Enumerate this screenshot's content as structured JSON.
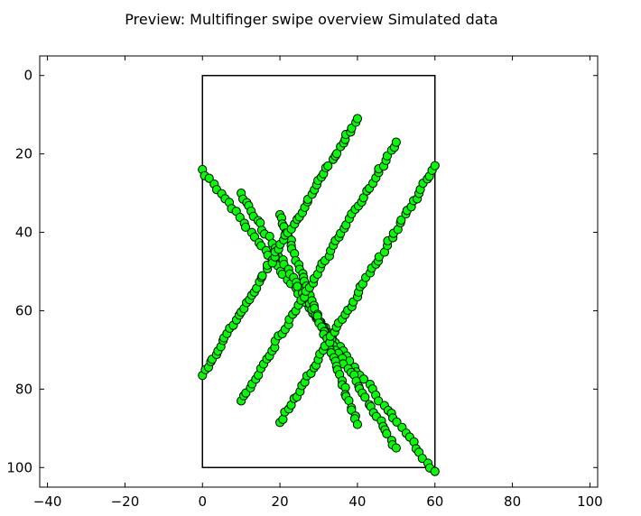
{
  "chart_data": {
    "type": "scatter",
    "title": "Preview: Multifinger swipe overview Simulated data",
    "xlabel": "",
    "ylabel": "",
    "xlim": [
      -42,
      102
    ],
    "ylim": [
      105,
      -5
    ],
    "y_inverted": true,
    "grid": false,
    "legend": "none",
    "x_ticks": [
      -40,
      -20,
      0,
      20,
      40,
      60,
      80,
      100
    ],
    "y_ticks": [
      0,
      20,
      40,
      60,
      80,
      100
    ],
    "marker_color": "#00ff00",
    "marker_edge_color": "#000000",
    "boundary_rectangle": {
      "x": [
        0,
        60
      ],
      "y": [
        0,
        100
      ]
    },
    "swipes": [
      {
        "start": [
          0,
          24
        ],
        "end": [
          60,
          101
        ],
        "points": 64
      },
      {
        "start": [
          10,
          30
        ],
        "end": [
          50,
          95
        ],
        "points": 58
      },
      {
        "start": [
          20,
          35.5
        ],
        "end": [
          40,
          89
        ],
        "points": 48
      },
      {
        "start": [
          0,
          76.5
        ],
        "end": [
          40,
          11
        ],
        "points": 62
      },
      {
        "start": [
          10,
          83
        ],
        "end": [
          50,
          17
        ],
        "points": 58
      },
      {
        "start": [
          20,
          88.5
        ],
        "end": [
          60,
          23
        ],
        "points": 58
      }
    ]
  }
}
